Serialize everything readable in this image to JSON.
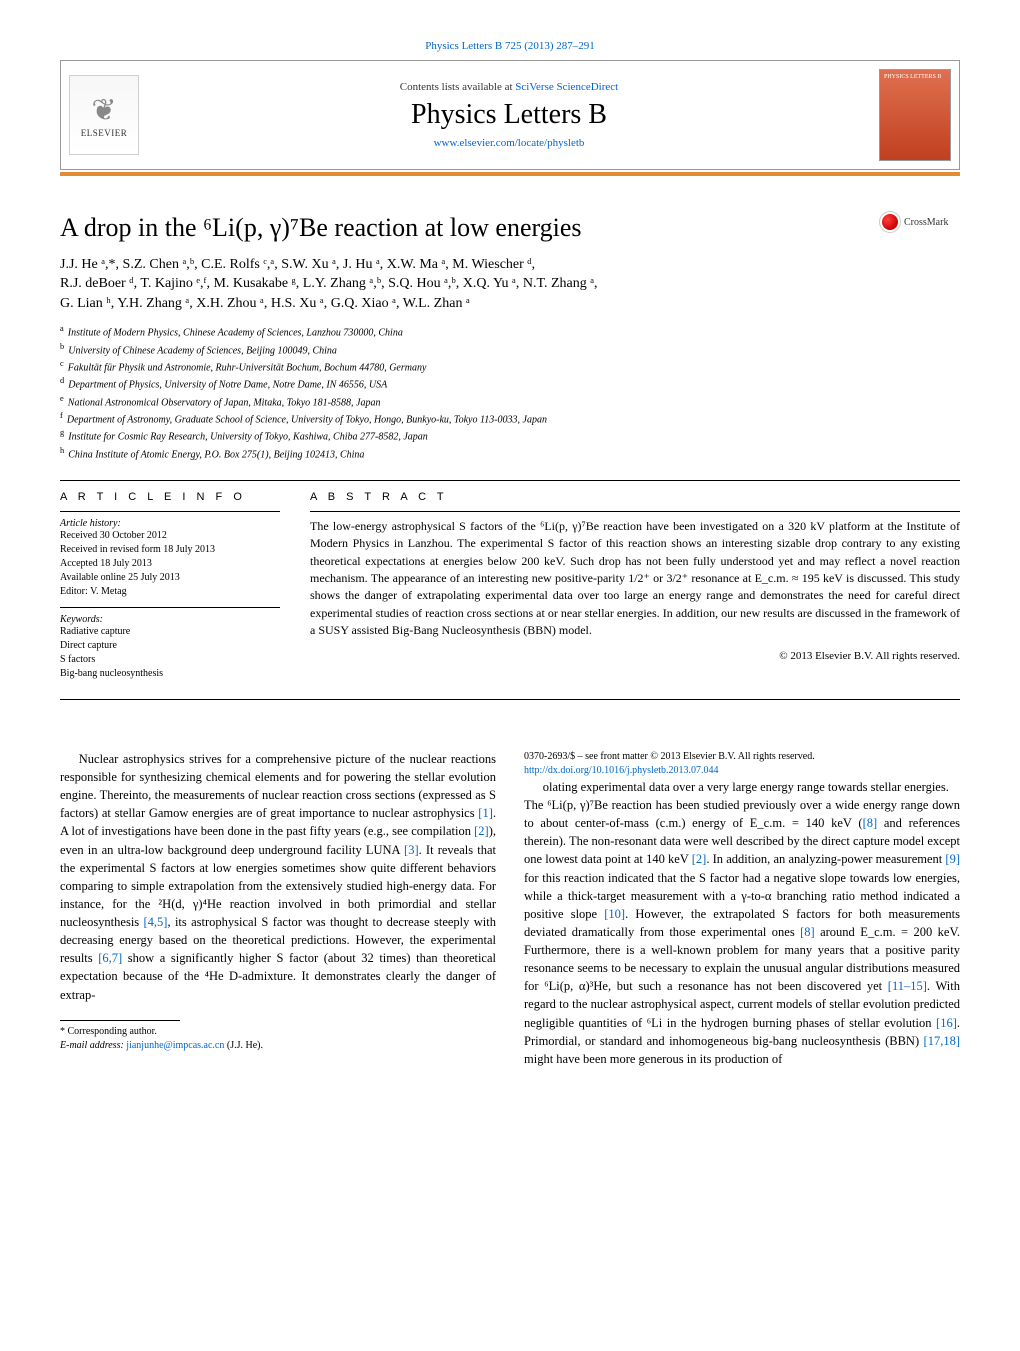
{
  "top_link": "Physics Letters B 725 (2013) 287–291",
  "header": {
    "contents_prefix": "Contents lists available at ",
    "contents_link": "SciVerse ScienceDirect",
    "journal": "Physics Letters B",
    "homepage": "www.elsevier.com/locate/physletb",
    "elsevier": "ELSEVIER",
    "cover_label": "PHYSICS LETTERS B"
  },
  "crossmark": "CrossMark",
  "title_html": "A drop in the ⁶Li(p, γ)⁷Be reaction at low energies",
  "authors_line1": "J.J. He ᵃ,*, S.Z. Chen ᵃ,ᵇ, C.E. Rolfs ᶜ,ᵃ, S.W. Xu ᵃ, J. Hu ᵃ, X.W. Ma ᵃ, M. Wiescher ᵈ,",
  "authors_line2": "R.J. deBoer ᵈ, T. Kajino ᵉ,ᶠ, M. Kusakabe ᵍ, L.Y. Zhang ᵃ,ᵇ, S.Q. Hou ᵃ,ᵇ, X.Q. Yu ᵃ, N.T. Zhang ᵃ,",
  "authors_line3": "G. Lian ʰ, Y.H. Zhang ᵃ, X.H. Zhou ᵃ, H.S. Xu ᵃ, G.Q. Xiao ᵃ, W.L. Zhan ᵃ",
  "affiliations": [
    {
      "sup": "a",
      "text": "Institute of Modern Physics, Chinese Academy of Sciences, Lanzhou 730000, China"
    },
    {
      "sup": "b",
      "text": "University of Chinese Academy of Sciences, Beijing 100049, China"
    },
    {
      "sup": "c",
      "text": "Fakultät für Physik und Astronomie, Ruhr-Universität Bochum, Bochum 44780, Germany"
    },
    {
      "sup": "d",
      "text": "Department of Physics, University of Notre Dame, Notre Dame, IN 46556, USA"
    },
    {
      "sup": "e",
      "text": "National Astronomical Observatory of Japan, Mitaka, Tokyo 181-8588, Japan"
    },
    {
      "sup": "f",
      "text": "Department of Astronomy, Graduate School of Science, University of Tokyo, Hongo, Bunkyo-ku, Tokyo 113-0033, Japan"
    },
    {
      "sup": "g",
      "text": "Institute for Cosmic Ray Research, University of Tokyo, Kashiwa, Chiba 277-8582, Japan"
    },
    {
      "sup": "h",
      "text": "China Institute of Atomic Energy, P.O. Box 275(1), Beijing 102413, China"
    }
  ],
  "article_info": {
    "heading": "A R T I C L E   I N F O",
    "history_label": "Article history:",
    "history": [
      "Received 30 October 2012",
      "Received in revised form 18 July 2013",
      "Accepted 18 July 2013",
      "Available online 25 July 2013",
      "Editor: V. Metag"
    ],
    "keywords_label": "Keywords:",
    "keywords": [
      "Radiative capture",
      "Direct capture",
      "S factors",
      "Big-bang nucleosynthesis"
    ]
  },
  "abstract": {
    "heading": "A B S T R A C T",
    "text": "The low-energy astrophysical S factors of the ⁶Li(p, γ)⁷Be reaction have been investigated on a 320 kV platform at the Institute of Modern Physics in Lanzhou. The experimental S factor of this reaction shows an interesting sizable drop contrary to any existing theoretical expectations at energies below 200 keV. Such drop has not been fully understood yet and may reflect a novel reaction mechanism. The appearance of an interesting new positive-parity 1/2⁺ or 3/2⁺ resonance at E_c.m. ≈ 195 keV is discussed. This study shows the danger of extrapolating experimental data over too large an energy range and demonstrates the need for careful direct experimental studies of reaction cross sections at or near stellar energies. In addition, our new results are discussed in the framework of a SUSY assisted Big-Bang Nucleosynthesis (BBN) model.",
    "copyright": "© 2013 Elsevier B.V. All rights reserved."
  },
  "body": {
    "left": "Nuclear astrophysics strives for a comprehensive picture of the nuclear reactions responsible for synthesizing chemical elements and for powering the stellar evolution engine. Thereinto, the measurements of nuclear reaction cross sections (expressed as S factors) at stellar Gamow energies are of great importance to nuclear astrophysics [1]. A lot of investigations have been done in the past fifty years (e.g., see compilation [2]), even in an ultra-low background deep underground facility LUNA [3]. It reveals that the experimental S factors at low energies sometimes show quite different behaviors comparing to simple extrapolation from the extensively studied high-energy data. For instance, for the ²H(d, γ)⁴He reaction involved in both primordial and stellar nucleosynthesis [4,5], its astrophysical S factor was thought to decrease steeply with decreasing energy based on the theoretical predictions. However, the experimental results [6,7] show a significantly higher S factor (about 32 times) than theoretical expectation because of the ⁴He D-admixture. It demonstrates clearly the danger of extrap-",
    "right": "olating experimental data over a very large energy range towards stellar energies.\n    The ⁶Li(p, γ)⁷Be reaction has been studied previously over a wide energy range down to about center-of-mass (c.m.) energy of E_c.m. = 140 keV ([8] and references therein). The non-resonant data were well described by the direct capture model except one lowest data point at 140 keV [2]. In addition, an analyzing-power measurement [9] for this reaction indicated that the S factor had a negative slope towards low energies, while a thick-target measurement with a γ-to-α branching ratio method indicated a positive slope [10]. However, the extrapolated S factors for both measurements deviated dramatically from those experimental ones [8] around E_c.m. = 200 keV. Furthermore, there is a well-known problem for many years that a positive parity resonance seems to be necessary to explain the unusual angular distributions measured for ⁶Li(p, α)³He, but such a resonance has not been discovered yet [11–15]. With regard to the nuclear astrophysical aspect, current models of stellar evolution predicted negligible quantities of ⁶Li in the hydrogen burning phases of stellar evolution [16]. Primordial, or standard and inhomogeneous big-bang nucleosynthesis (BBN) [17,18] might have been more generous in its production of"
  },
  "footnote": {
    "star": "* Corresponding author.",
    "email_label": "E-mail address: ",
    "email": "jianjunhe@impcas.ac.cn",
    "email_who": " (J.J. He)."
  },
  "bottom": {
    "line1": "0370-2693/$ – see front matter © 2013 Elsevier B.V. All rights reserved.",
    "doi": "http://dx.doi.org/10.1016/j.physletb.2013.07.044"
  },
  "refs": [
    "[1]",
    "[2]",
    "[3]",
    "[4,5]",
    "[6,7]",
    "[8]",
    "[9]",
    "[10]",
    "[11–15]",
    "[16]",
    "[17,18]"
  ],
  "colors": {
    "link": "#0066cc",
    "orange_rule": "#e38b36",
    "text": "#000000",
    "cover_bg_top": "#e07050",
    "cover_bg_bottom": "#c04020"
  }
}
